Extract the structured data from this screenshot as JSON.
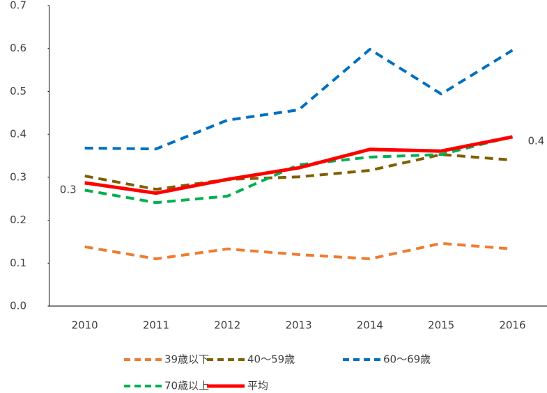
{
  "chart_data": {
    "type": "line",
    "categories": [
      "2010",
      "2011",
      "2012",
      "2013",
      "2014",
      "2015",
      "2016"
    ],
    "ylim": [
      0,
      0.7
    ],
    "yticks": [
      {
        "value": 0,
        "label": "0.0"
      },
      0.1,
      0.2,
      0.3,
      0.4,
      0.5,
      0.6,
      0.7
    ],
    "series": [
      {
        "name": "39歳以下",
        "color": "#ed7d31",
        "dashed": true,
        "values": [
          0.138,
          0.11,
          0.133,
          0.12,
          0.11,
          0.146,
          0.133
        ]
      },
      {
        "name": "40〜59歳",
        "color": "#7f6000",
        "dashed": true,
        "values": [
          0.303,
          0.272,
          0.295,
          0.301,
          0.316,
          0.353,
          0.34
        ]
      },
      {
        "name": "60〜69歳",
        "color": "#0070c0",
        "dashed": true,
        "values": [
          0.368,
          0.366,
          0.433,
          0.457,
          0.598,
          0.494,
          0.596
        ]
      },
      {
        "name": "70歳以上",
        "color": "#00b050",
        "dashed": true,
        "values": [
          0.27,
          0.241,
          0.256,
          0.329,
          0.347,
          0.353,
          0.395
        ]
      },
      {
        "name": "平均",
        "color": "#ff0000",
        "dashed": false,
        "values": [
          0.287,
          0.263,
          0.295,
          0.322,
          0.365,
          0.361,
          0.394
        ],
        "value_labels": [
          "0.3",
          null,
          null,
          null,
          null,
          null,
          "0.4"
        ]
      }
    ]
  }
}
